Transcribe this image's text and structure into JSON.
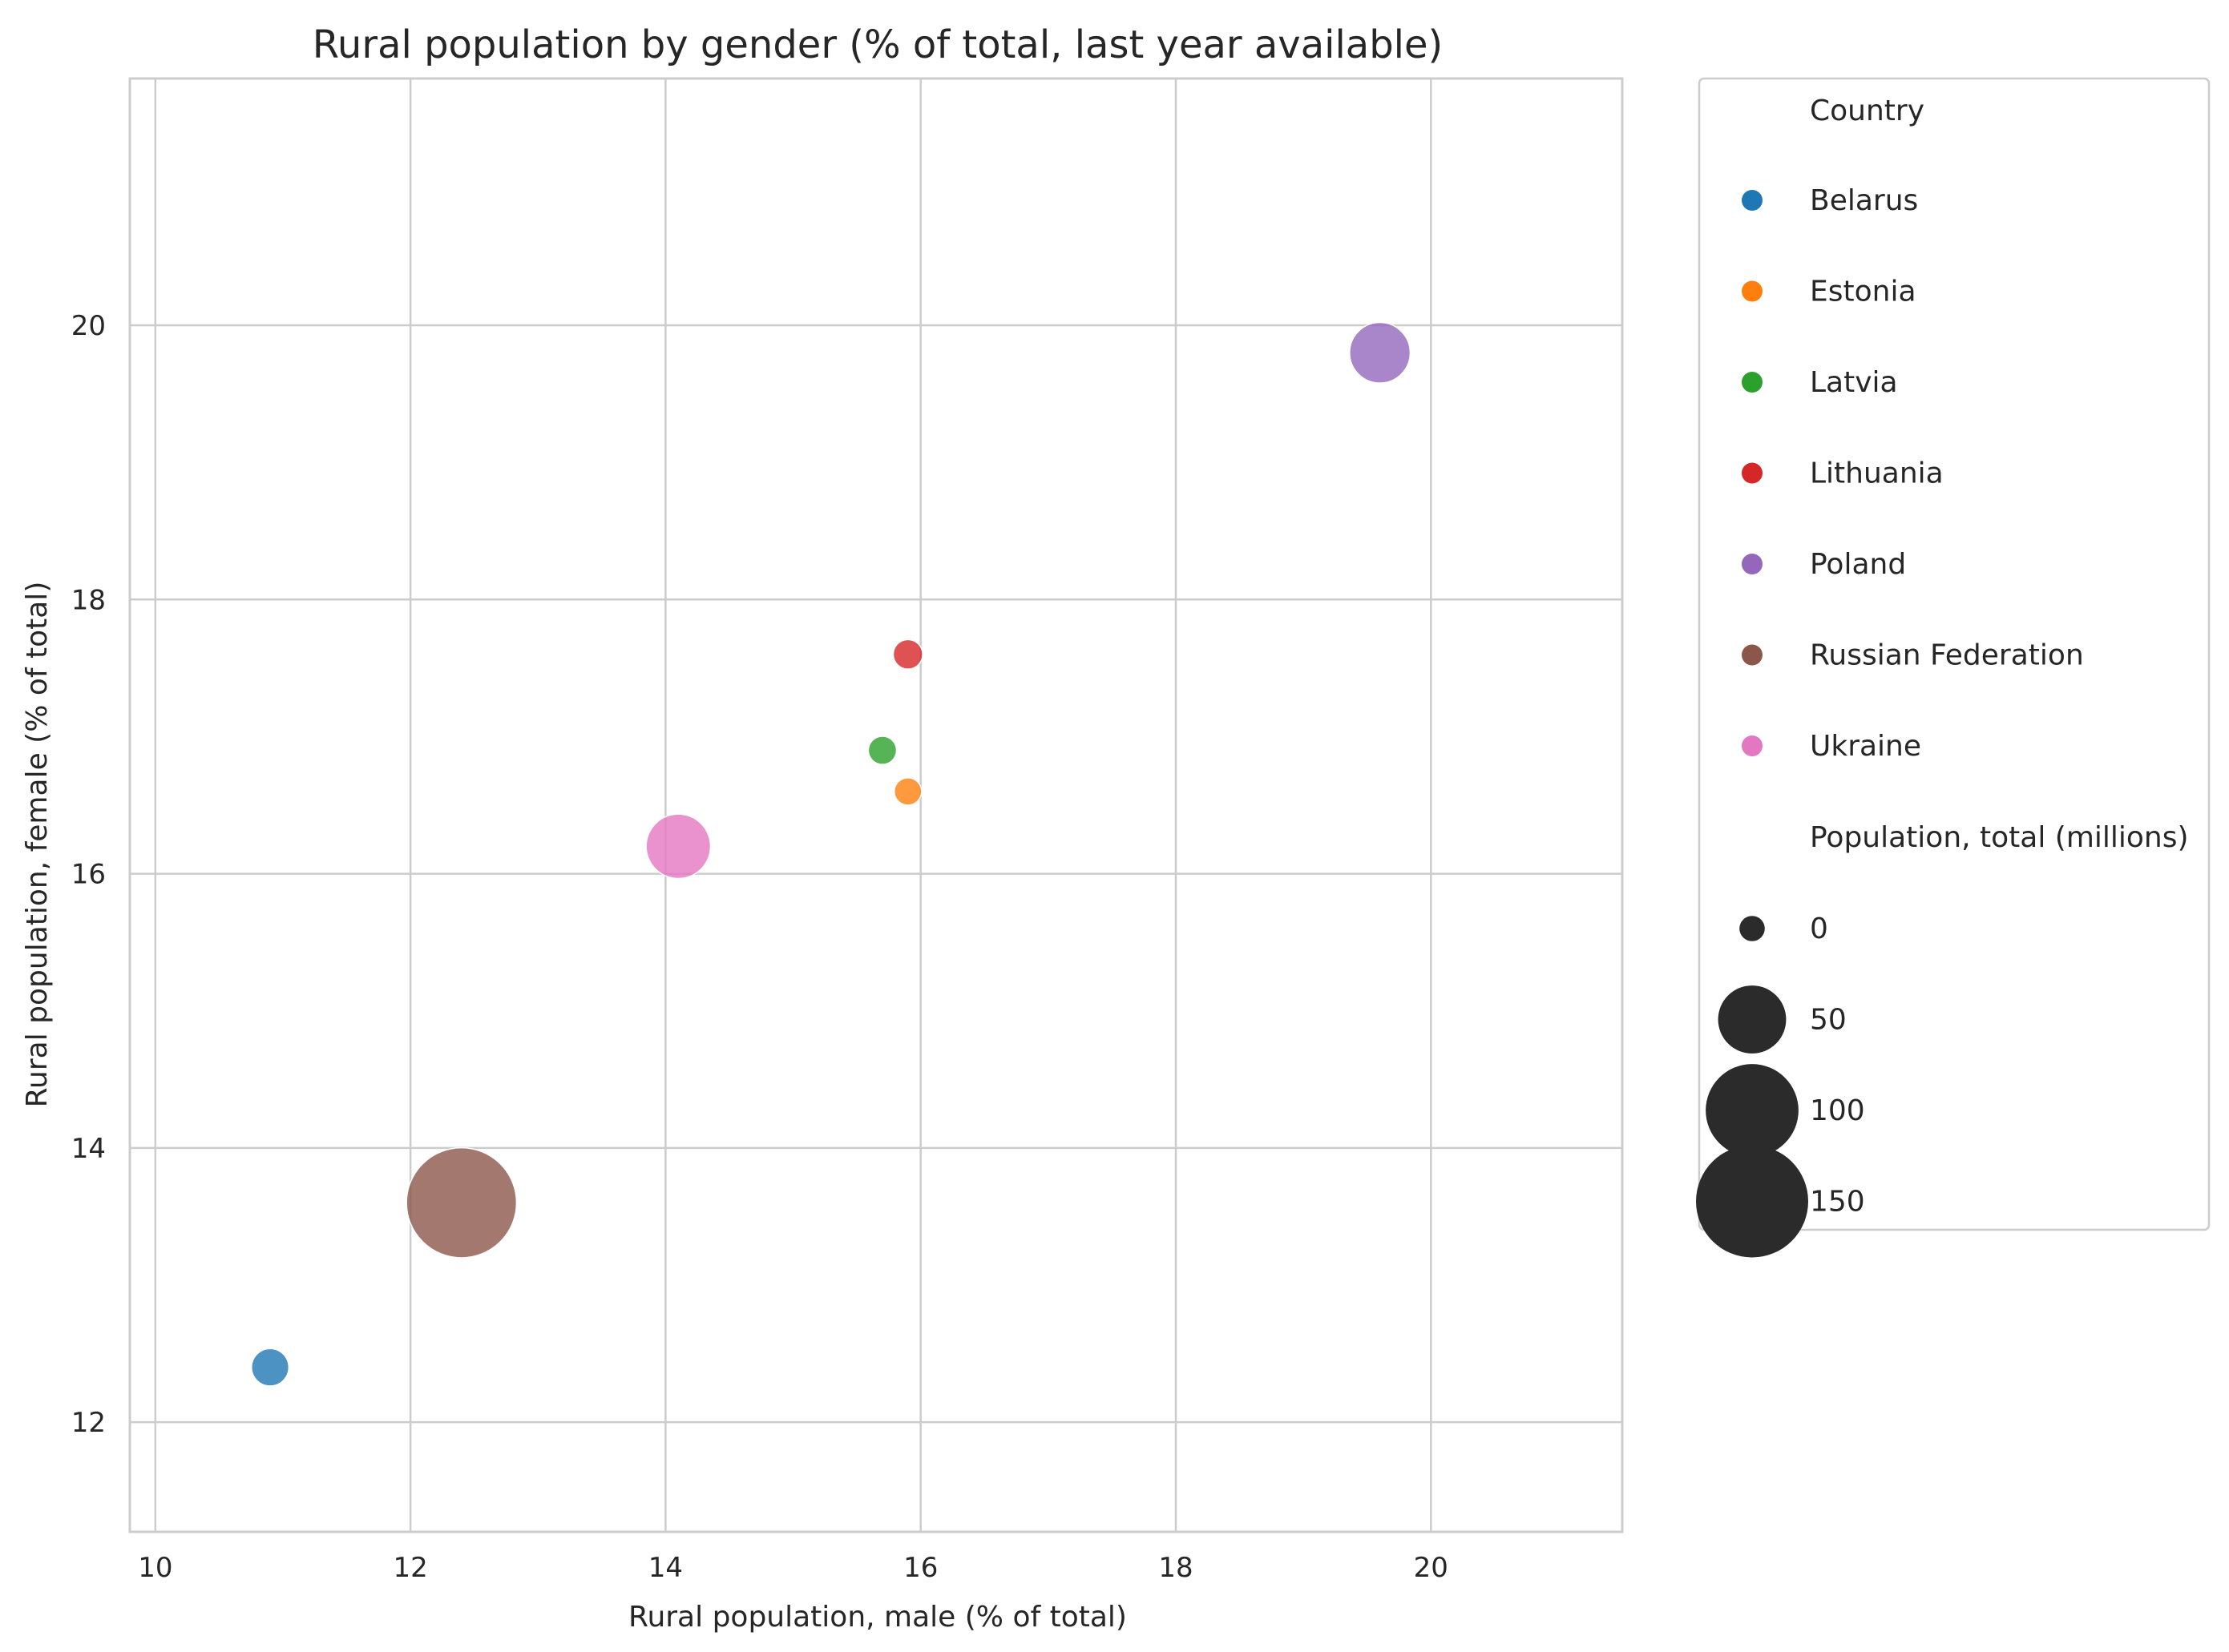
{
  "chart_data": {
    "type": "scatter",
    "title": "Rural population by gender (% of total, last year available)",
    "xlabel": "Rural population, male (% of total)",
    "ylabel": "Rural population, female (% of total)",
    "xlim": [
      9.8,
      21.5
    ],
    "ylim": [
      11.2,
      21.8
    ],
    "xticks": [
      10,
      12,
      14,
      16,
      18,
      20
    ],
    "yticks": [
      12,
      14,
      16,
      18,
      20
    ],
    "grid": true,
    "legend_position": "outside-right",
    "hue_title": "Country",
    "size_title": "Population, total (millions)",
    "size_legend": [
      0,
      50,
      100,
      150
    ],
    "series": [
      {
        "name": "Belarus",
        "color": "#1f77b4",
        "x": 10.9,
        "y": 12.4,
        "size": 9.4
      },
      {
        "name": "Estonia",
        "color": "#ff7f0e",
        "x": 15.9,
        "y": 16.6,
        "size": 1.3
      },
      {
        "name": "Latvia",
        "color": "#2ca02c",
        "x": 15.7,
        "y": 16.9,
        "size": 1.9
      },
      {
        "name": "Lithuania",
        "color": "#d62728",
        "x": 15.9,
        "y": 17.6,
        "size": 2.8
      },
      {
        "name": "Poland",
        "color": "#9467bd",
        "x": 19.6,
        "y": 19.8,
        "size": 38
      },
      {
        "name": "Russian Federation",
        "color": "#8c564b",
        "x": 12.4,
        "y": 13.6,
        "size": 144
      },
      {
        "name": "Ukraine",
        "color": "#e377c2",
        "x": 14.1,
        "y": 16.2,
        "size": 44
      }
    ]
  }
}
